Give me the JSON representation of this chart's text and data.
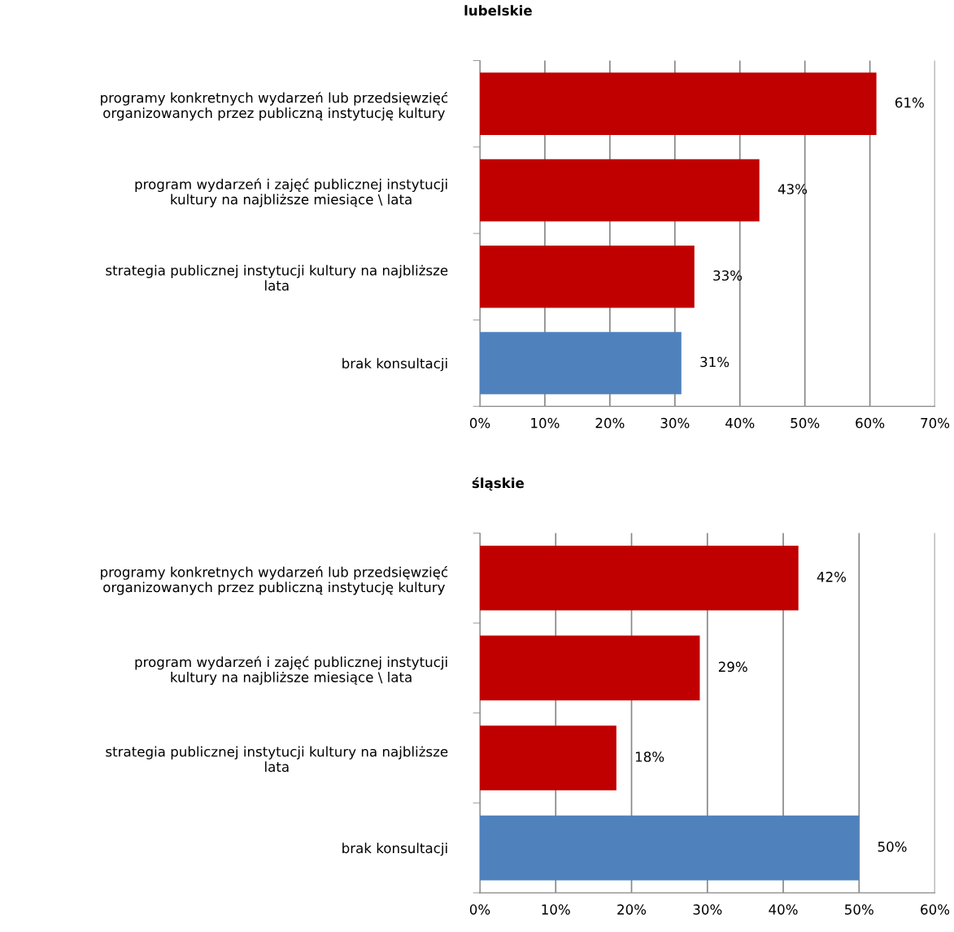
{
  "chart_data": [
    {
      "type": "bar",
      "orientation": "horizontal",
      "title": "lubelskie",
      "categories": [
        "programy konkretnych wydarzeń lub przedsięwzięć\norganizowanych przez publiczną instytucję kultury",
        "program wydarzeń i zajęć publicznej instytucji\nkultury na najbliższe miesiące \\ lata",
        "strategia publicznej instytucji kultury na najbliższe\nlata",
        "brak konsultacji"
      ],
      "values": [
        61,
        43,
        33,
        31
      ],
      "colors": [
        "#c00000",
        "#c00000",
        "#c00000",
        "#4f81bd"
      ],
      "value_labels": [
        "61%",
        "43%",
        "33%",
        "31%"
      ],
      "xlim": [
        0,
        70
      ],
      "xticks": [
        {
          "value": 0,
          "label": "0%"
        },
        {
          "value": 10,
          "label": "10%"
        },
        {
          "value": 20,
          "label": "20%"
        },
        {
          "value": 30,
          "label": "30%"
        },
        {
          "value": 40,
          "label": "40%"
        },
        {
          "value": 50,
          "label": "50%"
        },
        {
          "value": 60,
          "label": "60%"
        },
        {
          "value": 70,
          "label": "70%"
        }
      ],
      "grid": "x"
    },
    {
      "type": "bar",
      "orientation": "horizontal",
      "title": "śląskie",
      "categories": [
        "programy konkretnych wydarzeń lub przedsięwzięć\norganizowanych przez publiczną instytucję kultury",
        "program wydarzeń i zajęć publicznej instytucji\nkultury na najbliższe miesiące \\ lata",
        "strategia publicznej instytucji kultury na najbliższe\nlata",
        "brak konsultacji"
      ],
      "values": [
        42,
        29,
        18,
        50
      ],
      "colors": [
        "#c00000",
        "#c00000",
        "#c00000",
        "#4f81bd"
      ],
      "value_labels": [
        "42%",
        "29%",
        "18%",
        "50%"
      ],
      "xlim": [
        0,
        60
      ],
      "xticks": [
        {
          "value": 0,
          "label": "0%"
        },
        {
          "value": 10,
          "label": "10%"
        },
        {
          "value": 20,
          "label": "20%"
        },
        {
          "value": 30,
          "label": "30%"
        },
        {
          "value": 40,
          "label": "40%"
        },
        {
          "value": 50,
          "label": "50%"
        },
        {
          "value": 60,
          "label": "60%"
        }
      ],
      "grid": "x"
    }
  ]
}
